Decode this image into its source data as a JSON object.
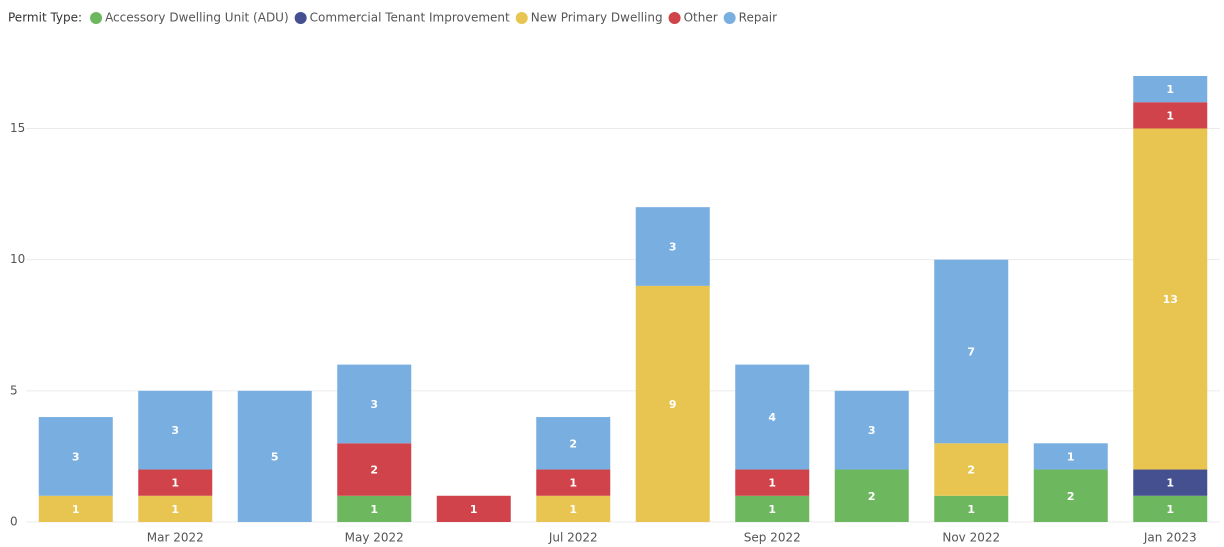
{
  "chart_data": {
    "type": "stacked_bar",
    "legend_title": "Permit Type:",
    "categories": [
      null,
      "Mar 2022",
      null,
      "May 2022",
      null,
      "Jul 2022",
      null,
      "Sep 2022",
      null,
      "Nov 2022",
      null,
      "Jan 2023"
    ],
    "series": [
      {
        "name": "Accessory Dwelling Unit (ADU)",
        "color": "#6db85e",
        "values": [
          null,
          null,
          null,
          1,
          null,
          null,
          null,
          1,
          2,
          1,
          2,
          1
        ]
      },
      {
        "name": "Commercial Tenant Improvement",
        "color": "#44508f",
        "values": [
          null,
          null,
          null,
          null,
          null,
          null,
          null,
          null,
          null,
          null,
          null,
          1
        ]
      },
      {
        "name": "New Primary Dwelling",
        "color": "#e8c550",
        "values": [
          1,
          1,
          null,
          null,
          null,
          1,
          9,
          null,
          null,
          2,
          null,
          13
        ]
      },
      {
        "name": "Other",
        "color": "#d0434a",
        "values": [
          null,
          1,
          null,
          2,
          1,
          1,
          null,
          1,
          null,
          null,
          null,
          1
        ]
      },
      {
        "name": "Repair",
        "color": "#79aee0",
        "values": [
          3,
          3,
          5,
          3,
          null,
          2,
          3,
          4,
          3,
          7,
          1,
          1
        ]
      }
    ],
    "ylim": [
      0,
      17
    ],
    "yticks": [
      0,
      5,
      10,
      15
    ],
    "grid": true
  }
}
